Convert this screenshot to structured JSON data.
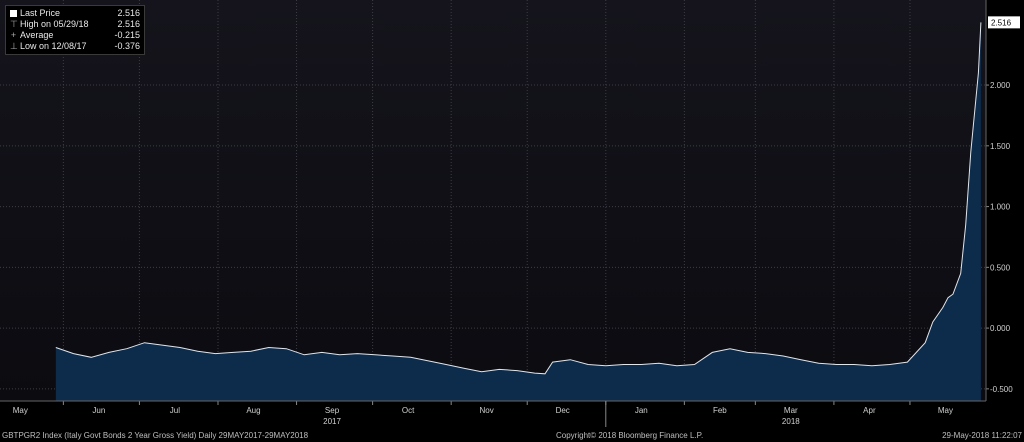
{
  "chart_data": {
    "type": "area",
    "title": "",
    "xlabel": "",
    "ylabel": "",
    "x_range": [
      "2017-05-29",
      "2018-05-29"
    ],
    "ylim": [
      -0.6,
      2.7
    ],
    "y_ticks": [
      -0.5,
      0.0,
      0.5,
      1.0,
      1.5,
      2.0
    ],
    "y_tick_labels": [
      "-0.500",
      "0.000",
      "0.500",
      "1.000",
      "1.500",
      "2.000"
    ],
    "x_ticks": [
      {
        "date": "2017-05-15",
        "label": "May"
      },
      {
        "date": "2017-06-15",
        "label": "Jun"
      },
      {
        "date": "2017-07-15",
        "label": "Jul"
      },
      {
        "date": "2017-08-15",
        "label": "Aug"
      },
      {
        "date": "2017-09-15",
        "label": "Sep"
      },
      {
        "date": "2017-10-15",
        "label": "Oct"
      },
      {
        "date": "2017-11-15",
        "label": "Nov"
      },
      {
        "date": "2017-12-15",
        "label": "Dec"
      },
      {
        "date": "2018-01-15",
        "label": "Jan"
      },
      {
        "date": "2018-02-15",
        "label": "Feb"
      },
      {
        "date": "2018-03-15",
        "label": "Mar"
      },
      {
        "date": "2018-04-15",
        "label": "Apr"
      },
      {
        "date": "2018-05-15",
        "label": "May"
      }
    ],
    "year_labels": [
      {
        "date": "2017-09-15",
        "label": "2017"
      },
      {
        "date": "2018-03-15",
        "label": "2018"
      }
    ],
    "last_value_label": "2.516",
    "grid": true,
    "legend_position": "top-left",
    "colors": {
      "background": "#000000",
      "plot_bg_top": "#15141c",
      "plot_bg_bottom": "#0b0b10",
      "fill": "#0d2b4a",
      "line": "#dfe6ee",
      "grid": "#3c3c44"
    },
    "series": [
      {
        "x": [
          "2017-05-29",
          "2017-06-05",
          "2017-06-12",
          "2017-06-19",
          "2017-06-26",
          "2017-07-03",
          "2017-07-10",
          "2017-07-17",
          "2017-07-24",
          "2017-07-31",
          "2017-08-07",
          "2017-08-14",
          "2017-08-21",
          "2017-08-28",
          "2017-09-04",
          "2017-09-11",
          "2017-09-18",
          "2017-09-25",
          "2017-10-02",
          "2017-10-09",
          "2017-10-16",
          "2017-10-23",
          "2017-10-30",
          "2017-11-06",
          "2017-11-13",
          "2017-11-20",
          "2017-11-27",
          "2017-12-04",
          "2017-12-08",
          "2017-12-11",
          "2017-12-18",
          "2017-12-25",
          "2018-01-01",
          "2018-01-08",
          "2018-01-15",
          "2018-01-22",
          "2018-01-29",
          "2018-02-05",
          "2018-02-12",
          "2018-02-19",
          "2018-02-26",
          "2018-03-05",
          "2018-03-12",
          "2018-03-19",
          "2018-03-26",
          "2018-04-02",
          "2018-04-09",
          "2018-04-16",
          "2018-04-23",
          "2018-04-30",
          "2018-05-07",
          "2018-05-10",
          "2018-05-14",
          "2018-05-16",
          "2018-05-18",
          "2018-05-21",
          "2018-05-23",
          "2018-05-25",
          "2018-05-28",
          "2018-05-29"
        ],
        "values": [
          -0.16,
          -0.21,
          -0.24,
          -0.2,
          -0.17,
          -0.12,
          -0.14,
          -0.16,
          -0.19,
          -0.21,
          -0.2,
          -0.19,
          -0.16,
          -0.17,
          -0.22,
          -0.2,
          -0.22,
          -0.21,
          -0.22,
          -0.23,
          -0.24,
          -0.27,
          -0.3,
          -0.33,
          -0.36,
          -0.34,
          -0.35,
          -0.37,
          -0.376,
          -0.28,
          -0.26,
          -0.3,
          -0.31,
          -0.3,
          -0.3,
          -0.29,
          -0.31,
          -0.3,
          -0.2,
          -0.17,
          -0.2,
          -0.21,
          -0.23,
          -0.26,
          -0.29,
          -0.3,
          -0.3,
          -0.31,
          -0.3,
          -0.28,
          -0.12,
          0.05,
          0.17,
          0.25,
          0.28,
          0.45,
          0.85,
          1.45,
          2.1,
          2.516
        ]
      }
    ]
  },
  "legend": {
    "rows": [
      {
        "label": "Last Price",
        "value": "2.516"
      },
      {
        "label": "High on 05/29/18",
        "value": "2.516"
      },
      {
        "label": "Average",
        "value": "-0.215"
      },
      {
        "label": "Low on 12/08/17",
        "value": "-0.376"
      }
    ]
  },
  "footer": {
    "left": "GBTPGR2 Index (Italy Govt Bonds 2 Year Gross Yield)  Daily 29MAY2017-29MAY2018",
    "center": "Copyright© 2018 Bloomberg Finance L.P.",
    "right": "29-May-2018 11:22:07"
  }
}
